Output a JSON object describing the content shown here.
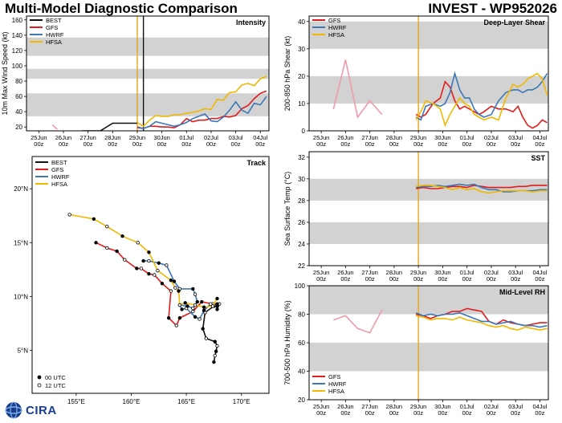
{
  "header": {
    "title_left": "Multi-Model Diagnostic Comparison",
    "title_right": "INVEST - WP952026"
  },
  "logo": {
    "text": "CIRA"
  },
  "colors": {
    "BEST": "#111111",
    "GFS": "#e01c1c",
    "HWRF": "#3b78b7",
    "HFSA": "#f0b800",
    "band": "#d2d2d2",
    "vline": "#e3a81a",
    "pink": "#f09aa8"
  },
  "chart_data": [
    {
      "id": "intensity",
      "type": "line",
      "title": "Intensity",
      "ylabel": "10m Max Wind Speed (kt)",
      "ylim": [
        15,
        165
      ],
      "yticks": [
        20,
        40,
        60,
        80,
        100,
        120,
        140,
        160
      ],
      "bands": [
        [
          34,
          64
        ],
        [
          83,
          96
        ],
        [
          113,
          137
        ]
      ],
      "x_ticks": [
        "25Jun\n00z",
        "26Jun\n00z",
        "27Jun\n00z",
        "28Jun\n00z",
        "29Jun\n00z",
        "30Jun\n00z",
        "01Jul\n00z",
        "02Jul\n00z",
        "03Jul\n00z",
        "04Jul\n00z"
      ],
      "xlim": [
        24.5,
        34.35
      ],
      "vlines": [
        {
          "x": 29.0,
          "color": "vline"
        },
        {
          "x": 29.25,
          "color": "BEST"
        }
      ],
      "legend": [
        "BEST",
        "GFS",
        "HWRF",
        "HFSA"
      ],
      "series": [
        {
          "name": "BEST",
          "x": [
            26.75,
            27.5,
            28.0,
            28.75,
            28.75,
            29.0
          ],
          "y": [
            15,
            15,
            25,
            25,
            25,
            25
          ]
        },
        {
          "name": "pre",
          "color": "pink",
          "x": [
            25.55,
            25.75
          ],
          "y": [
            23,
            17
          ]
        },
        {
          "name": "GFS",
          "x": [
            29.0,
            29.25,
            29.5,
            29.75,
            30.0,
            30.25,
            30.5,
            30.75,
            31.0,
            31.25,
            31.5,
            31.75,
            32.0,
            32.25,
            32.5,
            32.75,
            33.0,
            33.25,
            33.5,
            33.75,
            34.0,
            34.25
          ],
          "y": [
            20,
            18,
            21,
            21,
            20,
            20,
            19,
            23,
            31,
            27,
            29,
            29,
            31,
            31,
            34,
            33,
            35,
            44,
            48,
            57,
            64,
            67
          ]
        },
        {
          "name": "HWRF",
          "x": [
            29.0,
            29.25,
            29.5,
            29.75,
            30.0,
            30.25,
            30.5,
            30.75,
            31.0,
            31.25,
            31.5,
            31.75,
            32.0,
            32.25,
            32.5,
            32.75,
            33.0,
            33.25,
            33.5,
            33.75,
            34.0,
            34.25
          ],
          "y": [
            19,
            18,
            21,
            27,
            25,
            23,
            21,
            23,
            26,
            31,
            34,
            37,
            28,
            27,
            33,
            42,
            53,
            42,
            38,
            51,
            49,
            60
          ]
        },
        {
          "name": "HFSA",
          "x": [
            29.0,
            29.25,
            29.5,
            29.75,
            30.0,
            30.25,
            30.5,
            30.75,
            31.0,
            31.25,
            31.5,
            31.75,
            32.0,
            32.25,
            32.5,
            32.75,
            33.0,
            33.25,
            33.5,
            33.75,
            34.0,
            34.25
          ],
          "y": [
            26,
            21,
            29,
            35,
            34,
            34,
            36,
            36,
            38,
            39,
            41,
            44,
            43,
            56,
            55,
            65,
            66,
            75,
            77,
            74,
            83,
            86
          ]
        }
      ]
    },
    {
      "id": "shear",
      "type": "line",
      "title": "Deep-Layer Shear",
      "ylabel": "200-850 hPa Shear (kt)",
      "ylim": [
        0,
        42
      ],
      "yticks": [
        0,
        10,
        20,
        30,
        40
      ],
      "bands": [
        [
          10,
          20
        ],
        [
          30,
          40
        ]
      ],
      "x_ticks": [
        "25Jun\n00z",
        "26Jun\n00z",
        "27Jun\n00z",
        "28Jun\n00z",
        "29Jun\n00z",
        "30Jun\n00z",
        "01Jul\n00z",
        "02Jul\n00z",
        "03Jul\n00z",
        "04Jul\n00z"
      ],
      "xlim": [
        24.5,
        34.35
      ],
      "vlines": [
        {
          "x": 29.0,
          "color": "vline"
        }
      ],
      "legend": [
        "GFS",
        "HWRF",
        "HFSA"
      ],
      "series": [
        {
          "name": "pre",
          "color": "pink",
          "x": [
            25.5,
            26.0,
            26.5,
            27.0,
            27.5
          ],
          "y": [
            8,
            26,
            5,
            11,
            6
          ]
        },
        {
          "name": "GFS",
          "x": [
            28.9,
            29.1,
            29.3,
            29.6,
            29.9,
            30.1,
            30.3,
            30.5,
            30.7,
            30.9,
            31.1,
            31.3,
            31.5,
            31.7,
            32.0,
            32.3,
            32.6,
            32.9,
            33.1,
            33.3,
            33.5,
            33.7,
            33.9,
            34.1,
            34.3
          ],
          "y": [
            6,
            5,
            6,
            10,
            12,
            18,
            16,
            11,
            8,
            9,
            8,
            7,
            6,
            7,
            9,
            8,
            8,
            7,
            9,
            5,
            2,
            1,
            2,
            4,
            3
          ]
        },
        {
          "name": "HWRF",
          "x": [
            28.9,
            29.1,
            29.3,
            29.6,
            29.9,
            30.1,
            30.3,
            30.5,
            30.7,
            30.9,
            31.1,
            31.3,
            31.5,
            31.7,
            32.0,
            32.3,
            32.6,
            32.9,
            33.1,
            33.3,
            33.5,
            33.7,
            33.9,
            34.1,
            34.3
          ],
          "y": [
            5,
            4,
            9,
            10,
            9,
            10,
            14,
            21,
            15,
            12,
            12,
            8,
            6,
            5,
            6,
            11,
            14,
            15,
            15,
            14,
            15,
            15,
            16,
            18,
            21
          ]
        },
        {
          "name": "HFSA",
          "x": [
            28.9,
            29.1,
            29.3,
            29.6,
            29.9,
            30.1,
            30.3,
            30.5,
            30.7,
            30.9,
            31.1,
            31.3,
            31.5,
            31.7,
            32.0,
            32.3,
            32.6,
            32.9,
            33.1,
            33.3,
            33.5,
            33.7,
            33.9,
            34.1,
            34.3
          ],
          "y": [
            4,
            7,
            11,
            10,
            8,
            2,
            6,
            9,
            12,
            10,
            9,
            6,
            5,
            4,
            5,
            4,
            12,
            17,
            16,
            17,
            19,
            20,
            21,
            19,
            13
          ]
        }
      ]
    },
    {
      "id": "sst",
      "type": "line",
      "title": "SST",
      "ylabel": "Sea Surface Temp (°C)",
      "ylim": [
        22,
        32.5
      ],
      "yticks": [
        22,
        24,
        26,
        28,
        30,
        32
      ],
      "bands": [
        [
          24,
          26
        ],
        [
          28,
          30
        ]
      ],
      "x_ticks": [
        "25Jun\n00z",
        "26Jun\n00z",
        "27Jun\n00z",
        "28Jun\n00z",
        "29Jun\n00z",
        "30Jun\n00z",
        "01Jul\n00z",
        "02Jul\n00z",
        "03Jul\n00z",
        "04Jul\n00z"
      ],
      "xlim": [
        24.5,
        34.35
      ],
      "vlines": [
        {
          "x": 29.0,
          "color": "vline"
        }
      ],
      "legend": [],
      "series": [
        {
          "name": "GFS",
          "x": [
            28.9,
            29.2,
            29.5,
            29.8,
            30.1,
            30.4,
            30.7,
            31.0,
            31.3,
            31.6,
            31.9,
            32.2,
            32.5,
            32.8,
            33.1,
            33.4,
            33.7,
            34.0,
            34.3
          ],
          "y": [
            29.1,
            29.2,
            29.1,
            29.1,
            29.2,
            29.3,
            29.3,
            29.2,
            29.4,
            29.3,
            29.2,
            29.2,
            29.2,
            29.2,
            29.3,
            29.3,
            29.4,
            29.4,
            29.4
          ]
        },
        {
          "name": "HWRF",
          "x": [
            28.9,
            29.2,
            29.5,
            29.8,
            30.1,
            30.4,
            30.7,
            31.0,
            31.3,
            31.6,
            31.9,
            32.2,
            32.5,
            32.8,
            33.1,
            33.4,
            33.7,
            34.0,
            34.3
          ],
          "y": [
            29.2,
            29.3,
            29.3,
            29.4,
            29.3,
            29.4,
            29.5,
            29.4,
            29.5,
            29.2,
            29.0,
            29.0,
            28.8,
            28.8,
            28.9,
            28.9,
            28.9,
            29.0,
            29.0
          ]
        },
        {
          "name": "HFSA",
          "x": [
            28.9,
            29.2,
            29.5,
            29.8,
            30.1,
            30.4,
            30.7,
            31.0,
            31.3,
            31.6,
            31.9,
            32.2,
            32.5,
            32.8,
            33.1,
            33.4,
            33.7,
            34.0,
            34.3
          ],
          "y": [
            29.3,
            29.4,
            29.4,
            29.3,
            29.2,
            29.0,
            29.2,
            29.0,
            29.1,
            28.8,
            28.7,
            28.8,
            28.9,
            28.9,
            28.9,
            28.9,
            28.8,
            28.9,
            28.9
          ]
        }
      ]
    },
    {
      "id": "rh",
      "type": "line",
      "title": "Mid-Level RH",
      "ylabel": "700-500 hPa Humidity (%)",
      "ylim": [
        20,
        100
      ],
      "yticks": [
        20,
        40,
        60,
        80,
        100
      ],
      "bands": [
        [
          40,
          60
        ],
        [
          80,
          100
        ]
      ],
      "x_ticks": [
        "25Jun\n00z",
        "26Jun\n00z",
        "27Jun\n00z",
        "28Jun\n00z",
        "29Jun\n00z",
        "30Jun\n00z",
        "01Jul\n00z",
        "02Jul\n00z",
        "03Jul\n00z",
        "04Jul\n00z"
      ],
      "xlim": [
        24.5,
        34.35
      ],
      "vlines": [
        {
          "x": 29.0,
          "color": "vline"
        }
      ],
      "legend": [
        "GFS",
        "HWRF",
        "HFSA"
      ],
      "series": [
        {
          "name": "pre",
          "color": "pink",
          "x": [
            25.5,
            26.0,
            26.5,
            27.0,
            27.5
          ],
          "y": [
            76,
            79,
            70,
            67,
            83
          ]
        },
        {
          "name": "GFS",
          "x": [
            28.9,
            29.2,
            29.5,
            29.8,
            30.1,
            30.4,
            30.7,
            31.0,
            31.3,
            31.6,
            31.9,
            32.2,
            32.5,
            32.8,
            33.1,
            33.4,
            33.7,
            34.0,
            34.3
          ],
          "y": [
            80,
            79,
            77,
            79,
            80,
            82,
            82,
            84,
            83,
            82,
            75,
            73,
            76,
            74,
            73,
            72,
            73,
            74,
            74
          ]
        },
        {
          "name": "HWRF",
          "x": [
            28.9,
            29.2,
            29.5,
            29.8,
            30.1,
            30.4,
            30.7,
            31.0,
            31.3,
            31.6,
            31.9,
            32.2,
            32.5,
            32.8,
            33.1,
            33.4,
            33.7,
            34.0,
            34.3
          ],
          "y": [
            81,
            79,
            80,
            79,
            80,
            80,
            81,
            79,
            77,
            75,
            75,
            73,
            74,
            75,
            73,
            72,
            72,
            71,
            72
          ]
        },
        {
          "name": "HFSA",
          "x": [
            28.9,
            29.2,
            29.5,
            29.8,
            30.1,
            30.4,
            30.7,
            31.0,
            31.3,
            31.6,
            31.9,
            32.2,
            32.5,
            32.8,
            33.1,
            33.4,
            33.7,
            34.0,
            34.3
          ],
          "y": [
            79,
            78,
            76,
            77,
            77,
            76,
            78,
            76,
            75,
            74,
            72,
            71,
            72,
            70,
            69,
            71,
            70,
            69,
            70
          ]
        }
      ]
    },
    {
      "id": "track",
      "type": "scatter",
      "title": "Track",
      "xlim": [
        151,
        172.5
      ],
      "ylim": [
        1,
        23
      ],
      "xticks": [
        155,
        160,
        165,
        170
      ],
      "xtick_labels": [
        "155°E",
        "160°E",
        "165°E",
        "170°E"
      ],
      "yticks": [
        5,
        10,
        15,
        20
      ],
      "ytick_labels": [
        "5°N",
        "10°N",
        "15°N",
        "20°N"
      ],
      "legend": [
        "BEST",
        "GFS",
        "HWRF",
        "HFSA"
      ],
      "marker_legend": [
        "00 UTC",
        "12 UTC"
      ],
      "series": [
        {
          "name": "BEST",
          "lon": [
            167.5,
            167.6,
            167.7,
            167.8,
            167.6,
            166.8,
            166.5,
            166.7,
            167.5,
            168.0,
            167.8
          ],
          "lat": [
            3.9,
            4.5,
            4.9,
            5.4,
            5.8,
            6.1,
            7.0,
            8.5,
            9.1,
            9.3,
            8.8
          ]
        },
        {
          "name": "GFS",
          "lon": [
            167.8,
            167.4,
            166.4,
            165.6,
            164.4,
            164.1,
            163.4,
            163.6,
            162.8,
            162.1,
            161.6,
            160.9,
            160.5,
            159.4,
            158.7,
            157.8,
            156.8
          ],
          "lat": [
            9.3,
            9.3,
            9.5,
            8.6,
            8.0,
            7.3,
            8.0,
            10.5,
            11.2,
            12.0,
            12.1,
            12.6,
            12.6,
            13.4,
            14.2,
            14.5,
            15.0
          ]
        },
        {
          "name": "HWRF",
          "lon": [
            167.8,
            167.2,
            166.6,
            166.2,
            165.8,
            165.0,
            164.6,
            164.4,
            165.1,
            165.6,
            166.0,
            165.8,
            165.6,
            164.4,
            163.9,
            163.2,
            162.5,
            161.6,
            161.1
          ],
          "lat": [
            9.1,
            9.3,
            8.7,
            7.9,
            8.1,
            8.9,
            8.8,
            9.2,
            9.1,
            8.9,
            9.5,
            10.2,
            10.7,
            10.7,
            11.4,
            12.9,
            13.1,
            13.3,
            13.3
          ]
        },
        {
          "name": "HFSA",
          "lon": [
            167.8,
            167.4,
            166.6,
            165.8,
            164.9,
            164.4,
            164.3,
            164.0,
            163.6,
            162.4,
            161.6,
            160.6,
            159.2,
            157.8,
            156.6,
            154.4
          ],
          "lat": [
            9.8,
            9.1,
            9.0,
            9.2,
            9.4,
            9.2,
            10.5,
            10.8,
            11.5,
            12.4,
            14.1,
            15.0,
            15.6,
            16.5,
            17.2,
            17.6
          ]
        }
      ]
    }
  ]
}
